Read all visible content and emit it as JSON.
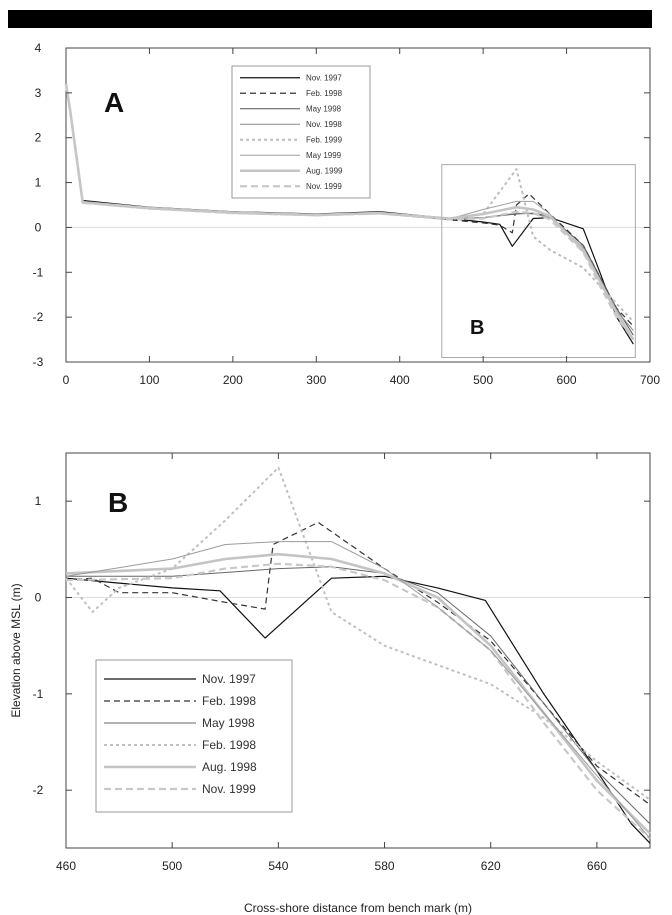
{
  "chart_data": [
    {
      "panel": "A",
      "type": "line",
      "xlim": [
        0,
        700
      ],
      "ylim": [
        -3,
        4
      ],
      "xticks": [
        "0",
        "100",
        "200",
        "300",
        "400",
        "500",
        "600",
        "700"
      ],
      "yticks": [
        "4",
        "3",
        "2",
        "1",
        "0",
        "-1",
        "-2",
        "-3"
      ],
      "inset_box_label": "B",
      "inset_box_range": {
        "x": [
          460,
          680
        ],
        "y": [
          -2.9,
          1.4
        ]
      },
      "legend": [
        "Nov. 1997",
        "Feb. 1998",
        "May 1998",
        "Nov. 1998",
        "Feb. 1999",
        "May 1999",
        "Aug. 1999",
        "Nov. 1999"
      ],
      "series": [
        {
          "name": "Nov. 1997",
          "color": "#111111",
          "dash": "",
          "width": 1.2,
          "x": [
            0,
            5,
            20,
            100,
            200,
            300,
            375,
            460,
            500,
            520,
            535,
            560,
            580,
            620,
            640,
            660,
            680
          ],
          "y": [
            3.2,
            2.6,
            0.6,
            0.45,
            0.35,
            0.3,
            0.35,
            0.2,
            0.12,
            0.07,
            -0.42,
            0.2,
            0.22,
            -0.03,
            -1.0,
            -2.0,
            -2.6
          ]
        },
        {
          "name": "Feb. 1998",
          "color": "#333333",
          "dash": "6,4",
          "width": 1.2,
          "x": [
            0,
            5,
            20,
            100,
            200,
            300,
            375,
            460,
            500,
            520,
            535,
            540,
            555,
            580,
            620,
            640,
            660,
            680
          ],
          "y": [
            3.2,
            2.6,
            0.55,
            0.42,
            0.33,
            0.28,
            0.33,
            0.17,
            0.1,
            0.05,
            -0.12,
            0.5,
            0.75,
            0.3,
            -0.4,
            -1.1,
            -1.8,
            -2.2
          ]
        },
        {
          "name": "May 1998",
          "color": "#555555",
          "dash": "",
          "width": 1.0,
          "x": [
            0,
            5,
            20,
            100,
            200,
            300,
            375,
            460,
            500,
            540,
            560,
            580,
            620,
            640,
            660,
            680
          ],
          "y": [
            3.2,
            2.6,
            0.58,
            0.44,
            0.34,
            0.29,
            0.34,
            0.2,
            0.22,
            0.3,
            0.32,
            0.25,
            -0.4,
            -1.1,
            -1.8,
            -2.4
          ]
        },
        {
          "name": "Nov. 1998",
          "color": "#8a8a8a",
          "dash": "",
          "width": 1.0,
          "x": [
            0,
            5,
            20,
            100,
            200,
            300,
            375,
            460,
            500,
            540,
            560,
            580,
            620,
            640,
            660,
            680
          ],
          "y": [
            3.2,
            2.6,
            0.56,
            0.43,
            0.33,
            0.28,
            0.32,
            0.2,
            0.22,
            0.32,
            0.3,
            0.22,
            -0.45,
            -1.15,
            -1.85,
            -2.3
          ]
        },
        {
          "name": "Feb. 1999",
          "color": "#bdbdbd",
          "dash": "3,3",
          "width": 2.0,
          "x": [
            0,
            5,
            20,
            100,
            200,
            300,
            375,
            460,
            500,
            520,
            540,
            560,
            580,
            620,
            640,
            660,
            680
          ],
          "y": [
            3.2,
            2.6,
            0.55,
            0.42,
            0.32,
            0.27,
            0.31,
            0.18,
            0.3,
            0.8,
            1.3,
            -0.2,
            -0.5,
            -0.9,
            -1.3,
            -1.7,
            -2.1
          ]
        },
        {
          "name": "May 1999",
          "color": "#a0a0a0",
          "dash": "",
          "width": 1.0,
          "x": [
            0,
            5,
            20,
            100,
            200,
            300,
            375,
            460,
            500,
            540,
            560,
            580,
            620,
            640,
            660,
            680
          ],
          "y": [
            3.2,
            2.6,
            0.57,
            0.43,
            0.33,
            0.28,
            0.32,
            0.19,
            0.4,
            0.58,
            0.58,
            0.3,
            -0.55,
            -1.2,
            -1.85,
            -2.5
          ]
        },
        {
          "name": "Aug. 1999",
          "color": "#c4c4c4",
          "dash": "",
          "width": 2.6,
          "x": [
            0,
            5,
            20,
            100,
            200,
            300,
            375,
            460,
            500,
            540,
            560,
            580,
            620,
            640,
            660,
            680
          ],
          "y": [
            3.2,
            2.6,
            0.56,
            0.43,
            0.33,
            0.28,
            0.32,
            0.2,
            0.3,
            0.45,
            0.4,
            0.25,
            -0.5,
            -1.2,
            -1.9,
            -2.5
          ]
        },
        {
          "name": "Nov. 1999",
          "color": "#c8c8c8",
          "dash": "7,4",
          "width": 2.2,
          "x": [
            0,
            5,
            20,
            100,
            200,
            300,
            375,
            460,
            500,
            540,
            560,
            580,
            620,
            640,
            660,
            680
          ],
          "y": [
            3.2,
            2.6,
            0.55,
            0.42,
            0.32,
            0.27,
            0.31,
            0.18,
            0.2,
            0.35,
            0.32,
            0.18,
            -0.55,
            -1.3,
            -2.0,
            -2.5
          ]
        }
      ]
    },
    {
      "panel": "B",
      "type": "line",
      "xlim": [
        460,
        680
      ],
      "ylim": [
        -2.6,
        1.5
      ],
      "xticks": [
        "460",
        "500",
        "540",
        "580",
        "620",
        "660"
      ],
      "yticks": [
        "1",
        "0",
        "-1",
        "-2"
      ],
      "xlabel": "Cross-shore distance from bench mark (m)",
      "ylabel": "Elevation above MSL (m)",
      "legend": [
        "Nov. 1997",
        "Feb. 1998",
        "May 1998",
        "Feb. 1998",
        "Aug. 1998",
        "Nov. 1999"
      ],
      "series": [
        {
          "name": "Nov. 1997",
          "color": "#111111",
          "dash": "",
          "width": 1.2,
          "x": [
            460,
            480,
            500,
            518,
            535,
            560,
            580,
            600,
            618,
            640,
            660,
            673,
            680
          ],
          "y": [
            0.2,
            0.15,
            0.1,
            0.07,
            -0.42,
            0.2,
            0.22,
            0.1,
            -0.03,
            -1.0,
            -1.8,
            -2.35,
            -2.55
          ]
        },
        {
          "name": "Feb. 1998",
          "color": "#333333",
          "dash": "6,4",
          "width": 1.2,
          "x": [
            460,
            470,
            480,
            500,
            520,
            535,
            538,
            555,
            580,
            600,
            620,
            640,
            660,
            680
          ],
          "y": [
            0.18,
            0.2,
            0.05,
            0.05,
            -0.05,
            -0.12,
            0.55,
            0.78,
            0.3,
            -0.05,
            -0.45,
            -1.1,
            -1.75,
            -2.15
          ]
        },
        {
          "name": "May 1998",
          "color": "#666666",
          "dash": "",
          "width": 1.0,
          "x": [
            460,
            500,
            520,
            540,
            560,
            580,
            600,
            620,
            640,
            660,
            680
          ],
          "y": [
            0.22,
            0.22,
            0.26,
            0.3,
            0.32,
            0.25,
            0.05,
            -0.4,
            -1.1,
            -1.8,
            -2.35
          ]
        },
        {
          "name": "Feb. 1998",
          "color": "#c0c0c0",
          "dash": "3,3",
          "width": 2.0,
          "x": [
            460,
            470,
            480,
            500,
            520,
            540,
            560,
            580,
            600,
            620,
            640,
            660,
            680
          ],
          "y": [
            0.2,
            -0.15,
            0.1,
            0.3,
            0.8,
            1.35,
            -0.15,
            -0.5,
            -0.7,
            -0.9,
            -1.25,
            -1.7,
            -2.1
          ]
        },
        {
          "name": "Aug. 1998",
          "color": "#c4c4c4",
          "dash": "",
          "width": 2.6,
          "x": [
            460,
            500,
            520,
            540,
            560,
            580,
            600,
            620,
            640,
            660,
            680
          ],
          "y": [
            0.25,
            0.3,
            0.4,
            0.45,
            0.4,
            0.25,
            0.0,
            -0.5,
            -1.2,
            -1.9,
            -2.45
          ]
        },
        {
          "name": "Nov. 1999",
          "color": "#c8c8c8",
          "dash": "7,4",
          "width": 2.2,
          "x": [
            460,
            500,
            520,
            540,
            560,
            580,
            600,
            620,
            640,
            660,
            680
          ],
          "y": [
            0.18,
            0.2,
            0.3,
            0.35,
            0.32,
            0.18,
            -0.1,
            -0.55,
            -1.3,
            -2.0,
            -2.5
          ]
        },
        {
          "name": "",
          "color": "#9a9a9a",
          "dash": "",
          "width": 1.0,
          "x": [
            460,
            500,
            520,
            540,
            560,
            580,
            600,
            620,
            640,
            660,
            680
          ],
          "y": [
            0.22,
            0.4,
            0.55,
            0.58,
            0.58,
            0.3,
            -0.1,
            -0.55,
            -1.2,
            -1.85,
            -2.5
          ]
        }
      ]
    }
  ]
}
